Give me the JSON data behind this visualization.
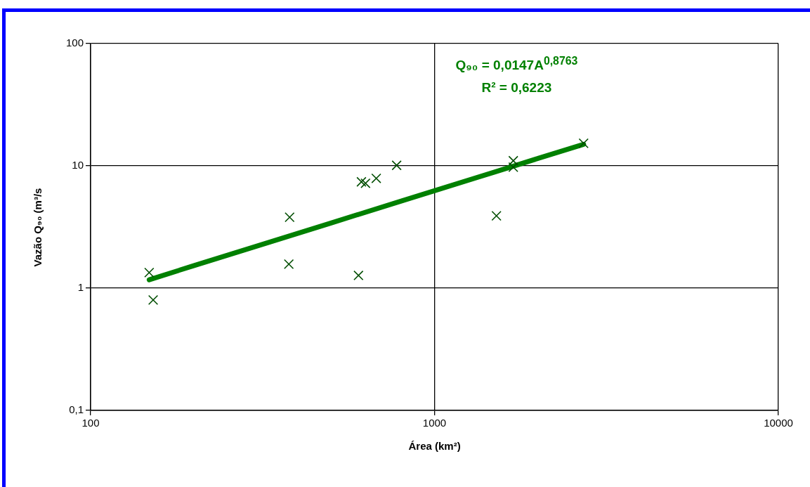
{
  "chart_data": {
    "type": "scatter",
    "xlabel": "Área (km²)",
    "ylabel": "Vazão Q₉₀ (m³/s",
    "log": "xy",
    "grid": true,
    "legend": false,
    "xlim": [
      100,
      10000
    ],
    "xticks": [
      100,
      1000,
      10000
    ],
    "ylim": [
      0.1,
      100
    ],
    "yticks": [
      {
        "value": 0.1,
        "label": "0,1"
      },
      1,
      10,
      100
    ],
    "annotations": [
      "Q₉₀ = 0,0147A$^{0,8763}$",
      "R² = 0,6223"
    ],
    "series": [
      {
        "marker": "cross",
        "color": "#004d00",
        "x": [
          148,
          152,
          379,
          377,
          601,
          613,
          630,
          677,
          776,
          1514,
          1695,
          1695,
          2714
        ],
        "values": [
          1.34,
          0.8,
          3.8,
          1.57,
          1.27,
          7.4,
          7.2,
          7.9,
          10.1,
          3.9,
          11,
          9.75,
          15.3
        ]
      },
      {
        "type": "line",
        "marker": "none",
        "color": "#008000",
        "x": [
          148,
          200,
          300,
          500,
          800,
          1000,
          1500,
          2000,
          2714
        ],
        "values": [
          1.17,
          1.53,
          2.18,
          3.41,
          5.15,
          6.26,
          8.93,
          11.5,
          15.0
        ]
      }
    ]
  }
}
